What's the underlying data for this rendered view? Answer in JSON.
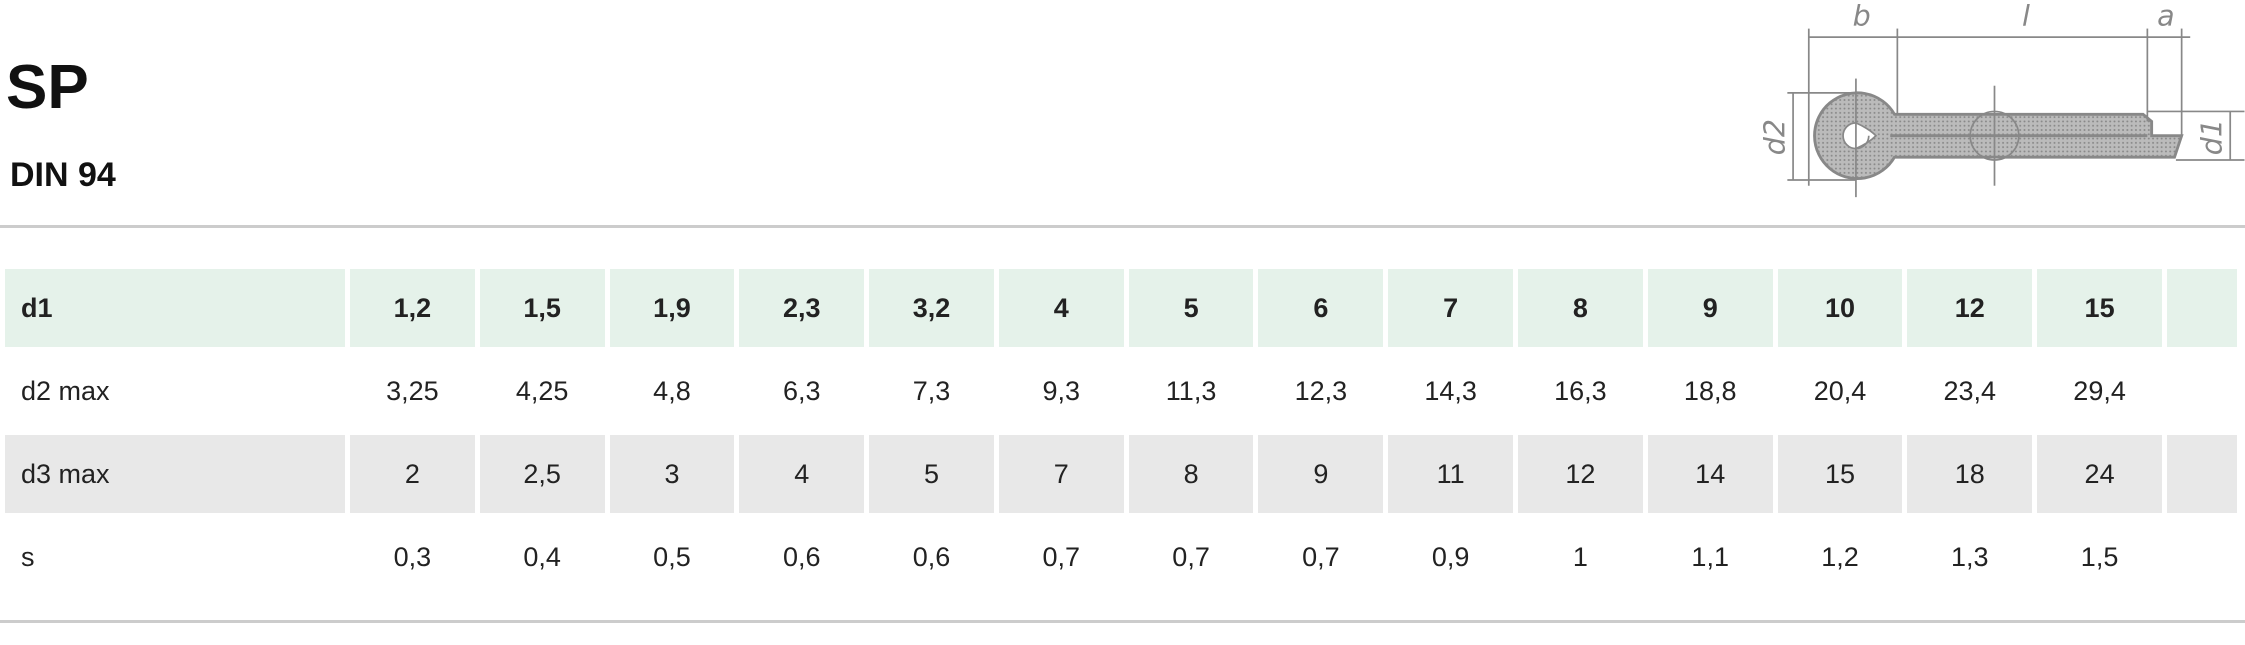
{
  "header": {
    "title": "SP",
    "subtitle": "DIN 94"
  },
  "diagram": {
    "labels": {
      "b": "b",
      "l": "l",
      "a": "a",
      "d2": "d2",
      "d1": "d1"
    }
  },
  "table": {
    "rows": [
      [
        "d1",
        "1,2",
        "1,5",
        "1,9",
        "2,3",
        "3,2",
        "4",
        "5",
        "6",
        "7",
        "8",
        "9",
        "10",
        "12",
        "15"
      ],
      [
        "d2 max",
        "3,25",
        "4,25",
        "4,8",
        "6,3",
        "7,3",
        "9,3",
        "11,3",
        "12,3",
        "14,3",
        "16,3",
        "18,8",
        "20,4",
        "23,4",
        "29,4"
      ],
      [
        "d3 max",
        "2",
        "2,5",
        "3",
        "4",
        "5",
        "7",
        "8",
        "9",
        "11",
        "12",
        "14",
        "15",
        "18",
        "24"
      ],
      [
        "s",
        "0,3",
        "0,4",
        "0,5",
        "0,6",
        "0,6",
        "0,7",
        "0,7",
        "0,7",
        "0,9",
        "1",
        "1,1",
        "1,2",
        "1,3",
        "1,5"
      ]
    ]
  }
}
